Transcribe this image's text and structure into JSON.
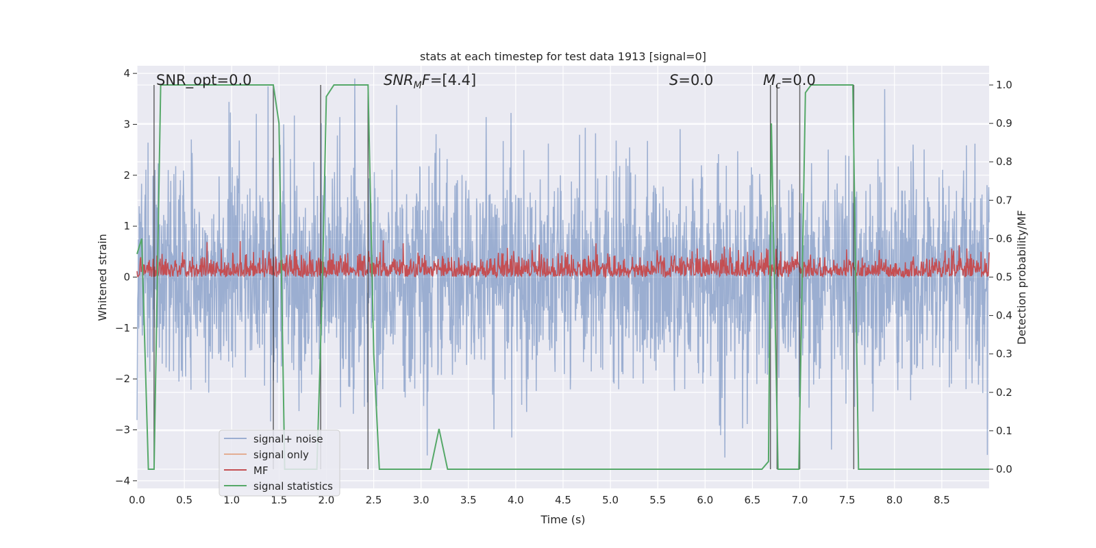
{
  "chart_data": {
    "type": "line",
    "title": "stats at each timestep for test data 1913 [signal=0]",
    "xlabel": "Time (s)",
    "ylabel_left": "Whitened strain",
    "ylabel_right": "Detection probability/MF",
    "xlim": [
      0,
      9.0
    ],
    "ylim_left": [
      -4.15,
      4.15
    ],
    "ylim_right": [
      -0.05,
      1.05
    ],
    "x_ticks": [
      0.0,
      0.5,
      1.0,
      1.5,
      2.0,
      2.5,
      3.0,
      3.5,
      4.0,
      4.5,
      5.0,
      5.5,
      6.0,
      6.5,
      7.0,
      7.5,
      8.0,
      8.5
    ],
    "y_ticks_left": [
      -4,
      -3,
      -2,
      -1,
      0,
      1,
      2,
      3,
      4
    ],
    "y_ticks_right": [
      0.0,
      0.1,
      0.2,
      0.3,
      0.4,
      0.5,
      0.6,
      0.7,
      0.8,
      0.9,
      1.0
    ],
    "grid": true,
    "legend_position": "bottom-left",
    "annotations": [
      "SNR_opt=0.0",
      "SNR_MF=[4.4]",
      "S=0.0",
      "M_c=0.0"
    ],
    "series": [
      {
        "name": "signal+ noise",
        "color": "#4c72b0",
        "axis": "left",
        "note_style": "dense noise ~N(0,1), range about -4 to 4"
      },
      {
        "name": "signal only",
        "color": "#dd8452",
        "axis": "left",
        "values": []
      },
      {
        "name": "MF",
        "color": "#c44e52",
        "axis": "right",
        "range": [
          0.5,
          0.6
        ]
      },
      {
        "name": "signal statistics",
        "color": "#55a868",
        "axis": "right",
        "x": [
          0.0,
          0.05,
          0.12,
          0.18,
          0.25,
          0.3,
          1.44,
          1.5,
          1.56,
          1.9,
          1.96,
          2.0,
          2.08,
          2.44,
          2.5,
          2.56,
          3.1,
          3.19,
          3.28,
          3.8,
          5.3,
          6.6,
          6.67,
          6.7,
          6.77,
          6.8,
          6.99,
          7.06,
          7.12,
          7.2,
          7.56,
          7.62,
          8.9,
          9.0
        ],
        "y": [
          0.56,
          0.6,
          0.0,
          0.0,
          1.0,
          1.0,
          1.0,
          0.9,
          0.0,
          0.0,
          0.5,
          0.97,
          1.0,
          1.0,
          0.3,
          0.0,
          0.0,
          0.105,
          0.0,
          0.0,
          0.0,
          0.0,
          0.02,
          0.9,
          0.0,
          0.0,
          0.0,
          0.98,
          1.0,
          1.0,
          1.0,
          0.0,
          0.0,
          0.0
        ]
      },
      {
        "name": "vertical markers",
        "color": "#333333",
        "axis": "right",
        "x": [
          0.18,
          1.44,
          1.94,
          2.44,
          6.69,
          6.76,
          7.0,
          7.57
        ]
      }
    ]
  }
}
